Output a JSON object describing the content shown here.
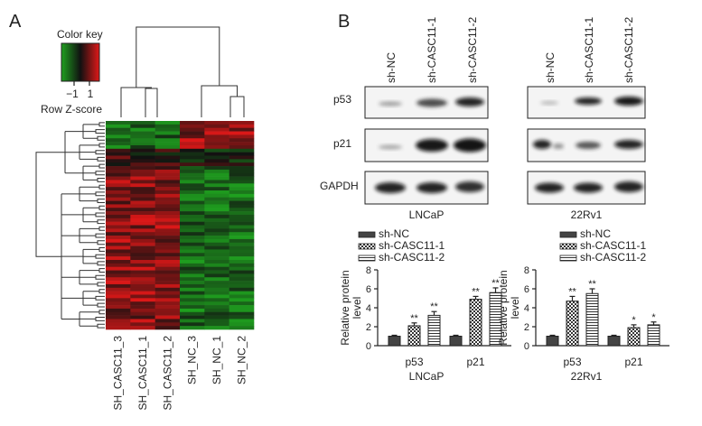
{
  "panels": {
    "a": "A",
    "b": "B"
  },
  "heatmap": {
    "color_key_title": "Color key",
    "key_ticks": [
      "−1",
      "1"
    ],
    "key_label": "Row Z-score",
    "colors": {
      "low": "#1fa01f",
      "mid": "#111111",
      "high": "#e01818"
    },
    "columns": [
      "SH_CASC11_3",
      "SH_CASC11_1",
      "SH_CASC11_2",
      "SH_NC_3",
      "SH_NC_1",
      "SH_NC_2"
    ]
  },
  "blots": {
    "lanes": [
      "sh-NC",
      "sh-CASC11-1",
      "sh-CASC11-2"
    ],
    "proteins": [
      "p53",
      "p21",
      "GAPDH"
    ],
    "cell_lines": [
      "LNCaP",
      "22Rv1"
    ]
  },
  "legend": [
    "sh-NC",
    "sh-CASC11-1",
    "sh-CASC11-2"
  ],
  "chart_data": [
    {
      "type": "bar",
      "title": "",
      "xlabel": "LNCaP",
      "ylabel": "Relative protein level",
      "ylim": [
        0,
        8
      ],
      "yticks": [
        "0",
        "2",
        "4",
        "6",
        "8"
      ],
      "categories": [
        "p53",
        "p21"
      ],
      "series": [
        {
          "name": "sh-NC",
          "values": [
            1.0,
            1.0
          ],
          "errors": [
            0.1,
            0.1
          ],
          "sig": [
            "",
            ""
          ]
        },
        {
          "name": "sh-CASC11-1",
          "values": [
            2.1,
            4.9
          ],
          "errors": [
            0.3,
            0.3
          ],
          "sig": [
            "**",
            "**"
          ]
        },
        {
          "name": "sh-CASC11-2",
          "values": [
            3.2,
            5.6
          ],
          "errors": [
            0.4,
            0.5
          ],
          "sig": [
            "**",
            "**"
          ]
        }
      ]
    },
    {
      "type": "bar",
      "title": "",
      "xlabel": "22Rv1",
      "ylabel": "Relative protein level",
      "ylim": [
        0,
        8
      ],
      "yticks": [
        "0",
        "2",
        "4",
        "6",
        "8"
      ],
      "categories": [
        "p53",
        "p21"
      ],
      "series": [
        {
          "name": "sh-NC",
          "values": [
            1.0,
            1.0
          ],
          "errors": [
            0.1,
            0.1
          ],
          "sig": [
            "",
            ""
          ]
        },
        {
          "name": "sh-CASC11-1",
          "values": [
            4.7,
            1.9
          ],
          "errors": [
            0.5,
            0.3
          ],
          "sig": [
            "**",
            "*"
          ]
        },
        {
          "name": "sh-CASC11-2",
          "values": [
            5.5,
            2.2
          ],
          "errors": [
            0.5,
            0.3
          ],
          "sig": [
            "**",
            "*"
          ]
        }
      ]
    }
  ]
}
